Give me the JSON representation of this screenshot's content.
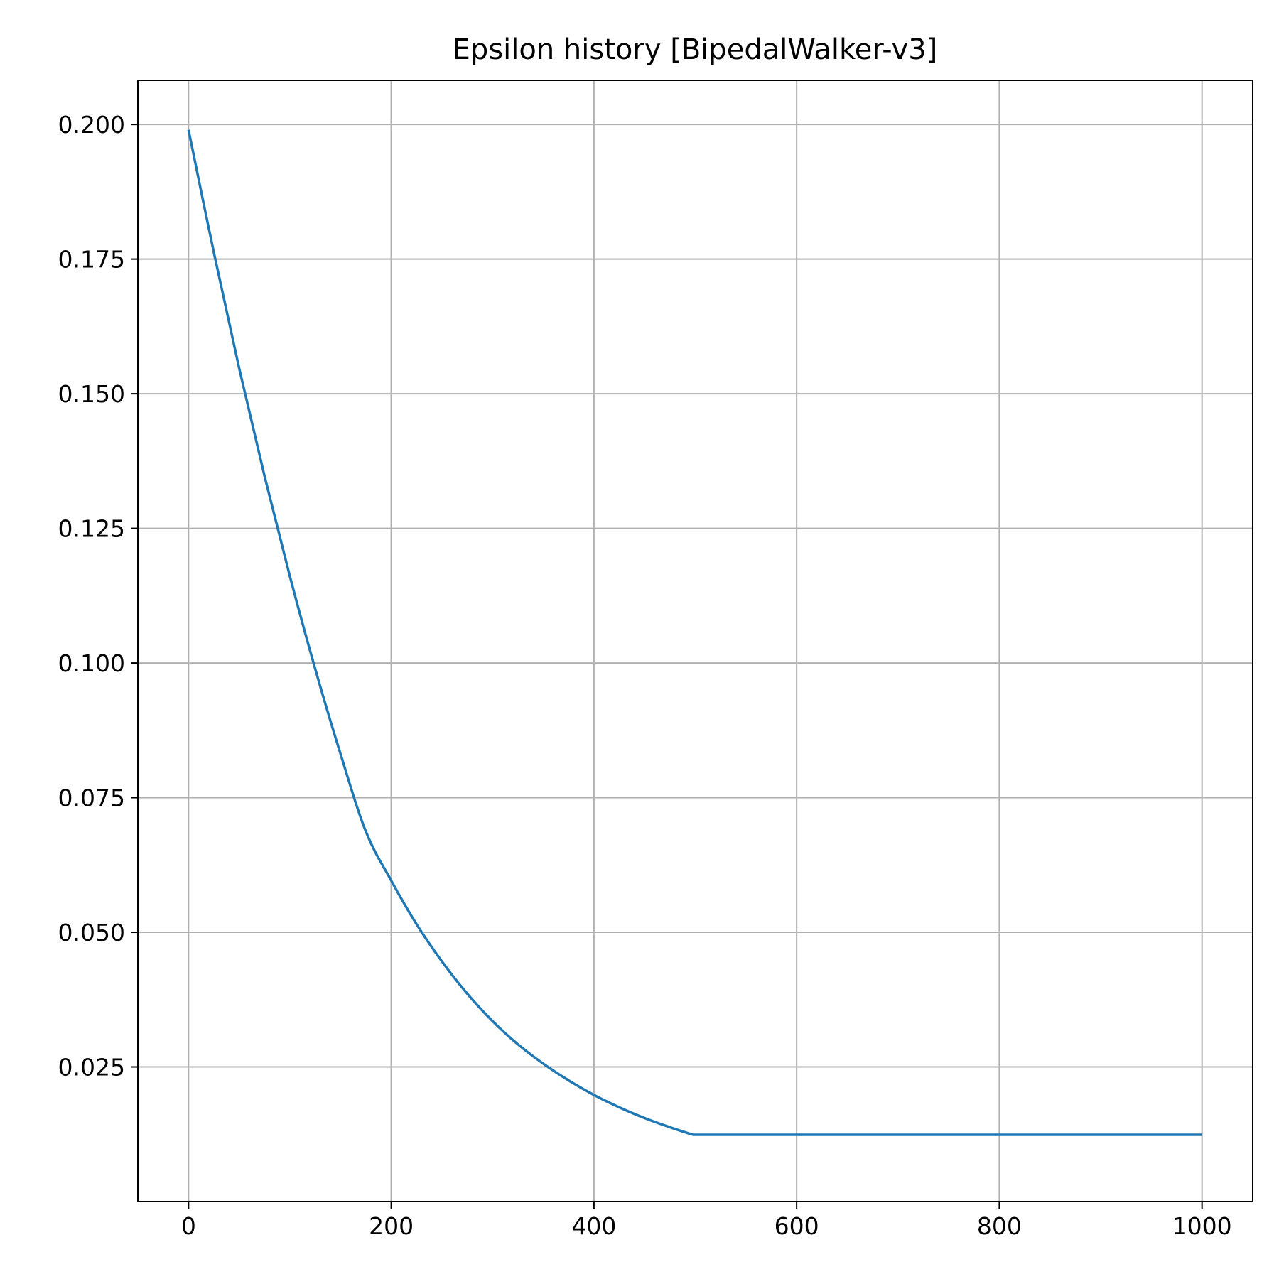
{
  "chart_data": {
    "type": "line",
    "title": "Epsilon history [BipedalWalker-v3]",
    "xlabel": "",
    "ylabel": "",
    "xlim": [
      -50,
      1050
    ],
    "ylim": [
      0.0,
      0.2082
    ],
    "grid": true,
    "legend": "none",
    "x_ticks": [
      0,
      200,
      400,
      600,
      800,
      1000
    ],
    "x_tick_labels": [
      "0",
      "200",
      "400",
      "600",
      "800",
      "1000"
    ],
    "y_ticks": [
      0.025,
      0.05,
      0.075,
      0.1,
      0.125,
      0.15,
      0.175,
      0.2
    ],
    "y_tick_labels": [
      "0.025",
      "0.050",
      "0.075",
      "0.100",
      "0.125",
      "0.150",
      "0.175",
      "0.200"
    ],
    "series": [
      {
        "color": "#1f77b4",
        "x": [
          0,
          25,
          50,
          75,
          100,
          125,
          150,
          175,
          200,
          225,
          250,
          275,
          300,
          325,
          350,
          375,
          400,
          425,
          450,
          475,
          498,
          500,
          600,
          700,
          800,
          900,
          1000
        ],
        "y": [
          0.199,
          0.1762,
          0.1547,
          0.1347,
          0.1161,
          0.0989,
          0.0831,
          0.0687,
          0.0596,
          0.0515,
          0.0446,
          0.0386,
          0.0335,
          0.0292,
          0.0256,
          0.0225,
          0.0198,
          0.0175,
          0.0155,
          0.0138,
          0.0124,
          0.0124,
          0.0124,
          0.0124,
          0.0124,
          0.0124,
          0.0124
        ]
      }
    ]
  }
}
